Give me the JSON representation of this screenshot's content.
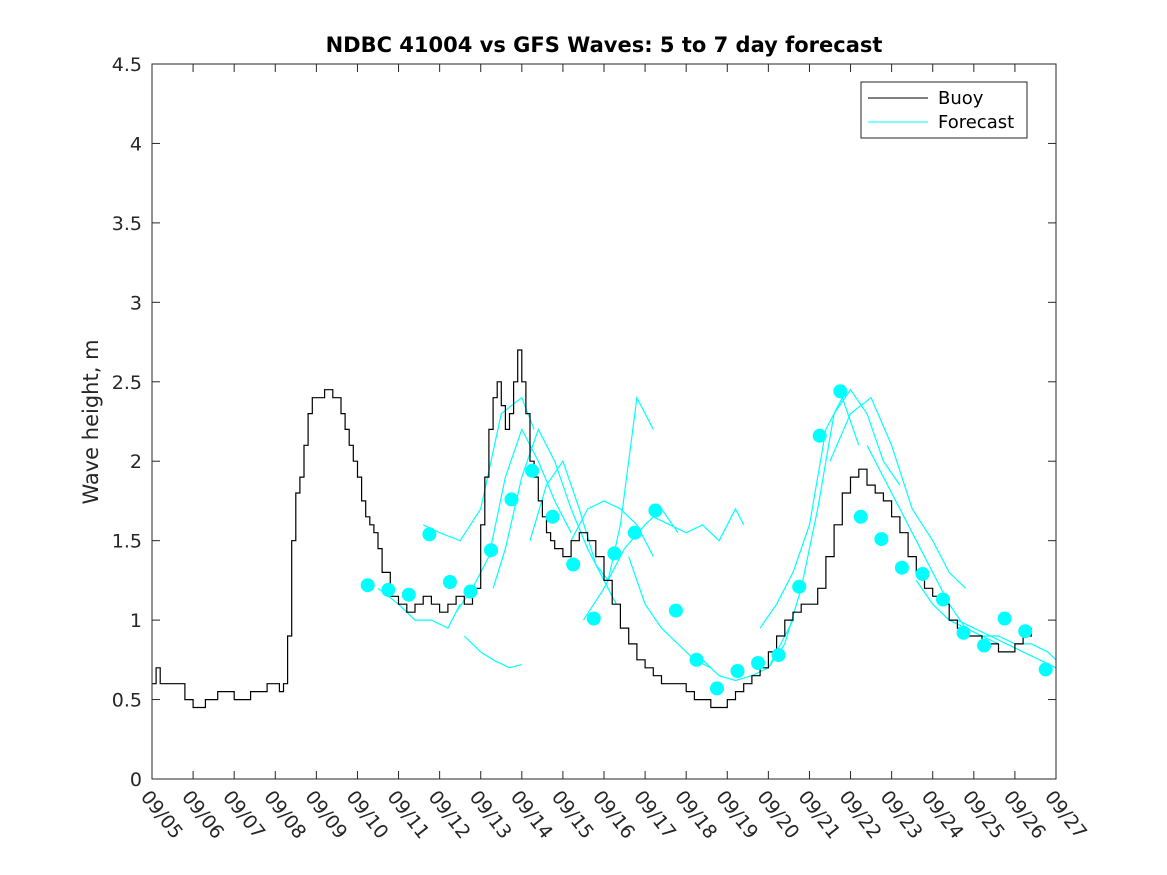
{
  "chart_data": {
    "type": "line",
    "title": "NDBC 41004 vs GFS Waves: 5 to 7 day forecast",
    "xlabel": "",
    "ylabel": "Wave height, m",
    "xlim": [
      0,
      22
    ],
    "ylim": [
      0,
      4.5
    ],
    "x_ticks": [
      "09/05",
      "09/06",
      "09/07",
      "09/08",
      "09/09",
      "09/10",
      "09/11",
      "09/12",
      "09/13",
      "09/14",
      "09/15",
      "09/16",
      "09/17",
      "09/18",
      "09/19",
      "09/20",
      "09/21",
      "09/22",
      "09/23",
      "09/24",
      "09/25",
      "09/26",
      "09/27"
    ],
    "y_ticks": [
      "0",
      "0.5",
      "1",
      "1.5",
      "2",
      "2.5",
      "3",
      "3.5",
      "4",
      "4.5"
    ],
    "legend": [
      "Buoy",
      "Forecast"
    ],
    "legend_position": "top-right",
    "colors": {
      "buoy": "#000000",
      "forecast": "#00ffff",
      "axis": "#262626"
    },
    "series": [
      {
        "name": "Buoy",
        "x": [
          0.0,
          0.1,
          0.2,
          0.4,
          0.6,
          0.8,
          1.0,
          1.3,
          1.6,
          2.0,
          2.4,
          2.8,
          3.0,
          3.1,
          3.2,
          3.3,
          3.4,
          3.5,
          3.6,
          3.7,
          3.8,
          3.9,
          4.0,
          4.2,
          4.4,
          4.6,
          4.7,
          4.8,
          4.9,
          5.0,
          5.1,
          5.2,
          5.3,
          5.4,
          5.5,
          5.6,
          5.8,
          6.0,
          6.2,
          6.4,
          6.6,
          6.8,
          7.0,
          7.2,
          7.4,
          7.6,
          7.8,
          8.0,
          8.1,
          8.2,
          8.3,
          8.4,
          8.5,
          8.6,
          8.7,
          8.8,
          8.9,
          9.0,
          9.1,
          9.2,
          9.3,
          9.4,
          9.5,
          9.6,
          9.7,
          9.8,
          10.0,
          10.2,
          10.4,
          10.6,
          10.8,
          11.0,
          11.2,
          11.4,
          11.6,
          11.8,
          12.0,
          12.2,
          12.4,
          12.6,
          12.8,
          13.0,
          13.2,
          13.4,
          13.6,
          13.8,
          14.0,
          14.2,
          14.4,
          14.6,
          14.8,
          15.0,
          15.2,
          15.4,
          15.6,
          15.8,
          16.0,
          16.2,
          16.4,
          16.6,
          16.8,
          17.0,
          17.2,
          17.4,
          17.6,
          17.8,
          18.0,
          18.2,
          18.4,
          18.6,
          18.8,
          19.0,
          19.2,
          19.4,
          19.6,
          19.8,
          20.0,
          20.2,
          20.4,
          20.6,
          20.8,
          21.0,
          21.2,
          21.4
        ],
        "values": [
          0.6,
          0.7,
          0.6,
          0.6,
          0.6,
          0.5,
          0.45,
          0.5,
          0.55,
          0.5,
          0.55,
          0.6,
          0.6,
          0.55,
          0.6,
          0.9,
          1.5,
          1.8,
          1.9,
          2.1,
          2.3,
          2.4,
          2.4,
          2.45,
          2.4,
          2.3,
          2.2,
          2.1,
          2.0,
          1.9,
          1.75,
          1.65,
          1.6,
          1.55,
          1.45,
          1.3,
          1.15,
          1.1,
          1.05,
          1.1,
          1.15,
          1.1,
          1.05,
          1.1,
          1.15,
          1.1,
          1.2,
          1.6,
          1.9,
          2.2,
          2.4,
          2.5,
          2.35,
          2.2,
          2.3,
          2.5,
          2.7,
          2.5,
          2.3,
          2.0,
          1.9,
          1.75,
          1.65,
          1.55,
          1.5,
          1.45,
          1.4,
          1.5,
          1.55,
          1.5,
          1.4,
          1.25,
          1.1,
          0.95,
          0.85,
          0.75,
          0.7,
          0.65,
          0.6,
          0.6,
          0.6,
          0.55,
          0.5,
          0.5,
          0.45,
          0.45,
          0.5,
          0.55,
          0.6,
          0.65,
          0.7,
          0.8,
          0.9,
          1.0,
          1.05,
          1.1,
          1.1,
          1.2,
          1.4,
          1.6,
          1.8,
          1.9,
          1.95,
          1.85,
          1.8,
          1.75,
          1.65,
          1.55,
          1.4,
          1.3,
          1.2,
          1.15,
          1.1,
          1.0,
          0.95,
          0.9,
          0.9,
          0.85,
          0.85,
          0.8,
          0.8,
          0.85,
          0.9,
          0.95
        ]
      }
    ],
    "forecast_lines": [
      {
        "x": [
          5.5,
          6.0,
          6.4,
          6.8,
          7.2,
          7.5
        ],
        "values": [
          1.2,
          1.1,
          1.0,
          1.0,
          0.95,
          1.1
        ]
      },
      {
        "x": [
          6.6,
          7.0,
          7.5,
          8.0,
          8.5,
          9.0,
          9.3
        ],
        "values": [
          1.6,
          1.55,
          1.5,
          1.7,
          2.3,
          2.4,
          2.2
        ]
      },
      {
        "x": [
          7.4,
          7.8,
          8.2,
          8.6,
          9.0,
          9.4,
          9.8,
          10.2
        ],
        "values": [
          1.05,
          1.2,
          1.4,
          1.9,
          2.2,
          2.0,
          1.75,
          1.55
        ]
      },
      {
        "x": [
          7.6,
          7.8,
          8.0,
          8.3,
          8.7,
          9.0
        ],
        "values": [
          0.9,
          0.85,
          0.8,
          0.75,
          0.7,
          0.72
        ]
      },
      {
        "x": [
          8.3,
          8.6,
          9.0,
          9.4,
          9.8,
          10.2,
          10.6,
          11.0,
          11.3
        ],
        "values": [
          1.2,
          1.45,
          1.9,
          2.2,
          2.0,
          1.7,
          1.45,
          1.25,
          1.1
        ]
      },
      {
        "x": [
          9.2,
          9.6,
          10.0,
          10.4,
          10.8,
          11.1,
          11.4,
          11.8,
          12.2
        ],
        "values": [
          1.5,
          1.85,
          2.0,
          1.7,
          1.35,
          1.25,
          1.6,
          2.4,
          2.2
        ]
      },
      {
        "x": [
          10.2,
          10.6,
          11.0,
          11.4,
          11.8,
          12.2
        ],
        "values": [
          1.5,
          1.7,
          1.75,
          1.7,
          1.6,
          1.4
        ]
      },
      {
        "x": [
          10.5,
          11.0,
          11.5,
          12.0,
          12.4,
          12.8
        ],
        "values": [
          1.0,
          1.2,
          1.45,
          1.6,
          1.7,
          1.55
        ]
      },
      {
        "x": [
          12.2,
          12.6,
          13.0,
          13.4,
          13.8,
          14.2,
          14.4
        ],
        "values": [
          1.65,
          1.6,
          1.55,
          1.6,
          1.5,
          1.7,
          1.6
        ]
      },
      {
        "x": [
          11.6,
          12.0,
          12.4,
          12.8,
          13.2,
          13.6
        ],
        "values": [
          1.4,
          1.1,
          0.95,
          0.85,
          0.75,
          0.7
        ]
      },
      {
        "x": [
          13.4,
          13.8,
          14.2,
          14.6,
          15.0,
          15.4,
          15.6
        ],
        "values": [
          0.75,
          0.65,
          0.62,
          0.65,
          0.7,
          0.9,
          1.0
        ]
      },
      {
        "x": [
          14.8,
          15.2,
          15.6,
          16.0,
          16.4,
          16.8,
          17.2
        ],
        "values": [
          0.95,
          1.1,
          1.3,
          1.6,
          2.2,
          2.4,
          2.1
        ]
      },
      {
        "x": [
          15.0,
          15.4,
          15.8,
          16.2,
          16.6,
          17.0,
          17.4,
          17.8,
          18.2
        ],
        "values": [
          0.7,
          0.85,
          1.2,
          1.7,
          2.3,
          2.45,
          2.3,
          2.0,
          1.85
        ]
      },
      {
        "x": [
          16.5,
          17.0,
          17.5,
          18.0,
          18.5,
          19.0,
          19.4,
          19.8
        ],
        "values": [
          2.0,
          2.3,
          2.4,
          2.1,
          1.7,
          1.5,
          1.3,
          1.2
        ]
      },
      {
        "x": [
          17.4,
          17.8,
          18.2,
          18.6,
          19.0,
          19.4,
          19.8,
          20.2,
          20.6
        ],
        "values": [
          2.1,
          1.9,
          1.7,
          1.5,
          1.3,
          1.1,
          0.95,
          0.9,
          0.85
        ]
      },
      {
        "x": [
          18.6,
          19.0,
          19.4,
          19.8,
          20.2,
          20.6,
          21.0,
          21.4,
          21.8,
          22.0
        ],
        "values": [
          1.25,
          1.1,
          1.0,
          0.95,
          0.9,
          0.9,
          0.85,
          0.85,
          0.8,
          0.75
        ]
      },
      {
        "x": [
          19.6,
          20.0,
          20.4,
          20.8,
          21.2,
          21.6,
          22.0
        ],
        "values": [
          1.0,
          0.95,
          0.9,
          0.85,
          0.8,
          0.75,
          0.7
        ]
      }
    ],
    "forecast_points": {
      "x": [
        5.25,
        5.75,
        6.25,
        6.75,
        7.25,
        7.75,
        8.25,
        8.75,
        9.25,
        9.75,
        10.25,
        10.75,
        11.25,
        11.75,
        12.25,
        12.75,
        13.25,
        13.75,
        14.25,
        14.75,
        15.25,
        15.75,
        16.25,
        16.75,
        17.25,
        17.75,
        18.25,
        18.75,
        19.25,
        19.75,
        20.25,
        20.75,
        21.25,
        21.75
      ],
      "values": [
        1.22,
        1.19,
        1.16,
        1.54,
        1.24,
        1.18,
        1.44,
        1.76,
        1.94,
        1.65,
        1.35,
        1.01,
        1.42,
        1.55,
        1.69,
        1.06,
        0.75,
        0.57,
        0.68,
        0.73,
        0.78,
        1.21,
        2.16,
        2.44,
        1.65,
        1.51,
        1.33,
        1.29,
        1.13,
        0.92,
        0.84,
        1.01,
        0.93,
        0.69
      ]
    }
  }
}
